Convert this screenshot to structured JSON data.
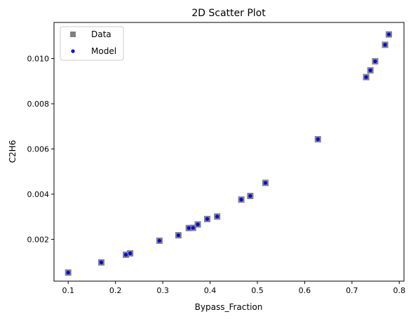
{
  "chart_data": {
    "type": "scatter",
    "title": "2D Scatter Plot",
    "xlabel": "Bypass_Fraction",
    "ylabel": "C2H6",
    "xlim": [
      0.07,
      0.81
    ],
    "ylim": [
      0.00015,
      0.0116
    ],
    "x_ticks": [
      0.1,
      0.2,
      0.3,
      0.4,
      0.5,
      0.6,
      0.7,
      0.8
    ],
    "x_tick_labels": [
      "0.1",
      "0.2",
      "0.3",
      "0.4",
      "0.5",
      "0.6",
      "0.7",
      "0.8"
    ],
    "y_ticks": [
      0.002,
      0.004,
      0.006,
      0.008,
      0.01
    ],
    "y_tick_labels": [
      "0.002",
      "0.004",
      "0.006",
      "0.008",
      "0.010"
    ],
    "grid": false,
    "legend_position": "upper-left",
    "series": [
      {
        "name": "Data",
        "marker": "square",
        "color": "#808080",
        "x": [
          0.1,
          0.17,
          0.222,
          0.231,
          0.293,
          0.333,
          0.355,
          0.364,
          0.374,
          0.394,
          0.415,
          0.466,
          0.485,
          0.517,
          0.628,
          0.73,
          0.739,
          0.749,
          0.77,
          0.778
        ],
        "y": [
          0.00053,
          0.00098,
          0.00132,
          0.00138,
          0.00194,
          0.00218,
          0.0025,
          0.00251,
          0.00266,
          0.0029,
          0.00301,
          0.00376,
          0.00392,
          0.0045,
          0.00643,
          0.00918,
          0.00948,
          0.00988,
          0.01061,
          0.01107
        ]
      },
      {
        "name": "Model",
        "marker": "circle",
        "color": "#0000ff",
        "x": [
          0.1,
          0.17,
          0.222,
          0.231,
          0.293,
          0.333,
          0.355,
          0.364,
          0.374,
          0.394,
          0.415,
          0.466,
          0.485,
          0.517,
          0.628,
          0.73,
          0.739,
          0.749,
          0.77,
          0.778
        ],
        "y": [
          0.00053,
          0.00098,
          0.00132,
          0.00138,
          0.00194,
          0.00218,
          0.0025,
          0.00251,
          0.00266,
          0.0029,
          0.00301,
          0.00376,
          0.00392,
          0.0045,
          0.00643,
          0.00918,
          0.00948,
          0.00988,
          0.01061,
          0.01107
        ]
      }
    ]
  }
}
